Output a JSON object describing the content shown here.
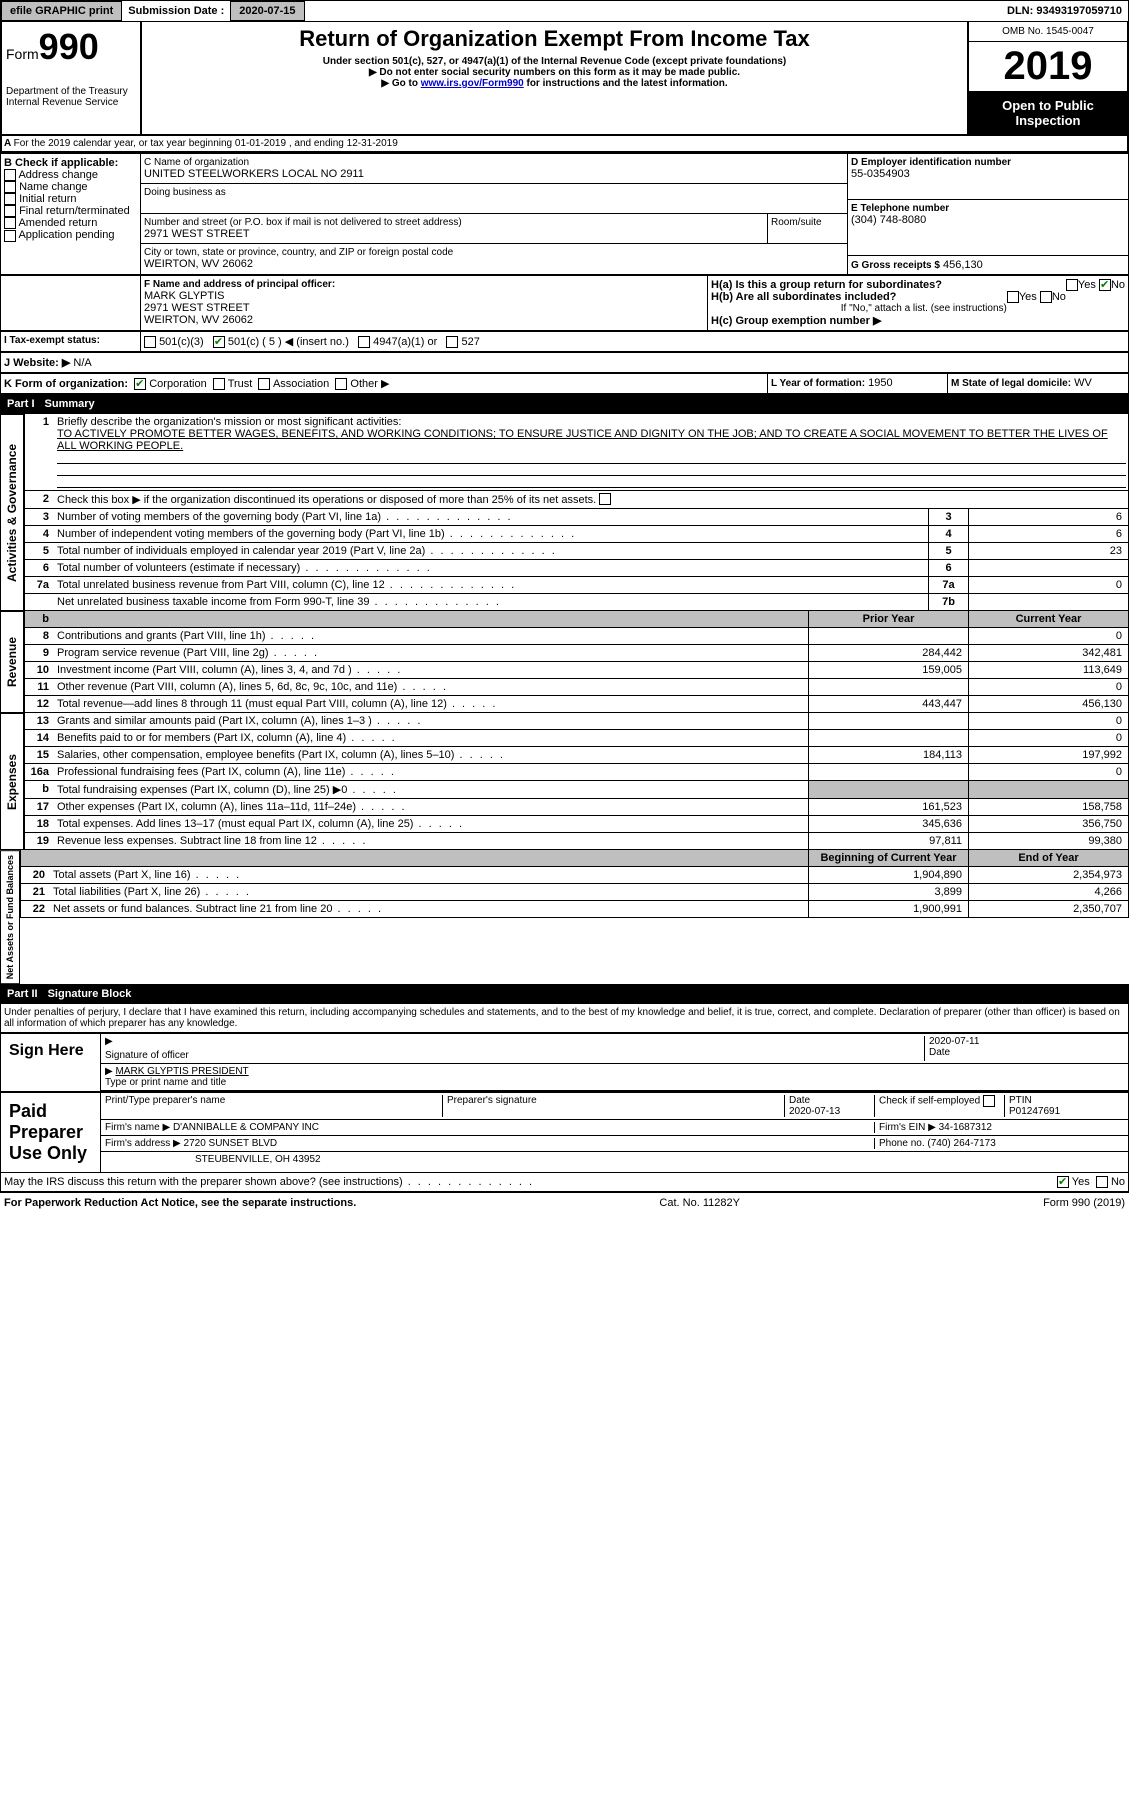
{
  "topbar": {
    "efile_btn": "efile GRAPHIC print",
    "sub_label": "Submission Date :",
    "sub_date": "2020-07-15",
    "dln_label": "DLN:",
    "dln": "93493197059710"
  },
  "header": {
    "form_word": "Form",
    "form_num": "990",
    "dept": "Department of the Treasury\nInternal Revenue Service",
    "title": "Return of Organization Exempt From Income Tax",
    "sub1": "Under section 501(c), 527, or 4947(a)(1) of the Internal Revenue Code (except private foundations)",
    "sub2": "▶ Do not enter social security numbers on this form as it may be made public.",
    "sub3a": "▶ Go to ",
    "sub3_link": "www.irs.gov/Form990",
    "sub3b": " for instructions and the latest information.",
    "omb": "OMB No. 1545-0047",
    "year": "2019",
    "open": "Open to Public Inspection"
  },
  "A": {
    "text": "For the 2019 calendar year, or tax year beginning 01-01-2019   , and ending 12-31-2019"
  },
  "B": {
    "label": "B Check if applicable:",
    "opts": [
      "Address change",
      "Name change",
      "Initial return",
      "Final return/terminated",
      "Amended return",
      "Application pending"
    ]
  },
  "C": {
    "name_lbl": "C Name of organization",
    "name": "UNITED STEELWORKERS LOCAL NO 2911",
    "dba_lbl": "Doing business as",
    "street_lbl": "Number and street (or P.O. box if mail is not delivered to street address)",
    "street": "2971 WEST STREET",
    "room_lbl": "Room/suite",
    "city_lbl": "City or town, state or province, country, and ZIP or foreign postal code",
    "city": "WEIRTON, WV  26062"
  },
  "D": {
    "lbl": "D Employer identification number",
    "val": "55-0354903"
  },
  "E": {
    "lbl": "E Telephone number",
    "val": "(304) 748-8080"
  },
  "G": {
    "lbl": "G Gross receipts $",
    "val": "456,130"
  },
  "F": {
    "lbl": "F  Name and address of principal officer:",
    "name": "MARK GLYPTIS",
    "street": "2971 WEST STREET",
    "city": "WEIRTON, WV  26062"
  },
  "H": {
    "a_lbl": "H(a)  Is this a group return for subordinates?",
    "b_lbl": "H(b)  Are all subordinates included?",
    "b_note": "If \"No,\" attach a list. (see instructions)",
    "c_lbl": "H(c)  Group exemption number ▶",
    "yes": "Yes",
    "no": "No"
  },
  "I": {
    "lbl": "I  Tax-exempt status:",
    "opts": [
      "501(c)(3)",
      "501(c) ( 5 ) ◀ (insert no.)",
      "4947(a)(1) or",
      "527"
    ]
  },
  "J": {
    "lbl": "J  Website: ▶",
    "val": "N/A"
  },
  "K": {
    "lbl": "K Form of organization:",
    "opts": [
      "Corporation",
      "Trust",
      "Association",
      "Other ▶"
    ]
  },
  "L": {
    "lbl": "L Year of formation:",
    "val": "1950"
  },
  "M": {
    "lbl": "M State of legal domicile:",
    "val": "WV"
  },
  "part1": {
    "label": "Part I",
    "title": "Summary"
  },
  "part2": {
    "label": "Part II",
    "title": "Signature Block"
  },
  "summary": {
    "q1": "Briefly describe the organization's mission or most significant activities:",
    "mission": "TO ACTIVELY PROMOTE BETTER WAGES, BENEFITS, AND WORKING CONDITIONS; TO ENSURE JUSTICE AND DIGNITY ON THE JOB; AND TO CREATE A SOCIAL MOVEMENT TO BETTER THE LIVES OF ALL WORKING PEOPLE.",
    "q2": "Check this box ▶      if the organization discontinued its operations or disposed of more than 25% of its net assets.",
    "rows_ag": [
      {
        "n": "3",
        "d": "Number of voting members of the governing body (Part VI, line 1a)",
        "box": "3",
        "v": "6"
      },
      {
        "n": "4",
        "d": "Number of independent voting members of the governing body (Part VI, line 1b)",
        "box": "4",
        "v": "6"
      },
      {
        "n": "5",
        "d": "Total number of individuals employed in calendar year 2019 (Part V, line 2a)",
        "box": "5",
        "v": "23"
      },
      {
        "n": "6",
        "d": "Total number of volunteers (estimate if necessary)",
        "box": "6",
        "v": ""
      },
      {
        "n": "7a",
        "d": "Total unrelated business revenue from Part VIII, column (C), line 12",
        "box": "7a",
        "v": "0"
      },
      {
        "n": "",
        "d": "Net unrelated business taxable income from Form 990-T, line 39",
        "box": "7b",
        "v": ""
      }
    ],
    "prior_hdr": "Prior Year",
    "curr_hdr": "Current Year",
    "rev": [
      {
        "n": "8",
        "d": "Contributions and grants (Part VIII, line 1h)",
        "p": "",
        "c": "0"
      },
      {
        "n": "9",
        "d": "Program service revenue (Part VIII, line 2g)",
        "p": "284,442",
        "c": "342,481"
      },
      {
        "n": "10",
        "d": "Investment income (Part VIII, column (A), lines 3, 4, and 7d )",
        "p": "159,005",
        "c": "113,649"
      },
      {
        "n": "11",
        "d": "Other revenue (Part VIII, column (A), lines 5, 6d, 8c, 9c, 10c, and 11e)",
        "p": "",
        "c": "0"
      },
      {
        "n": "12",
        "d": "Total revenue—add lines 8 through 11 (must equal Part VIII, column (A), line 12)",
        "p": "443,447",
        "c": "456,130"
      }
    ],
    "exp": [
      {
        "n": "13",
        "d": "Grants and similar amounts paid (Part IX, column (A), lines 1–3 )",
        "p": "",
        "c": "0"
      },
      {
        "n": "14",
        "d": "Benefits paid to or for members (Part IX, column (A), line 4)",
        "p": "",
        "c": "0"
      },
      {
        "n": "15",
        "d": "Salaries, other compensation, employee benefits (Part IX, column (A), lines 5–10)",
        "p": "184,113",
        "c": "197,992"
      },
      {
        "n": "16a",
        "d": "Professional fundraising fees (Part IX, column (A), line 11e)",
        "p": "",
        "c": "0"
      },
      {
        "n": "b",
        "d": "Total fundraising expenses (Part IX, column (D), line 25) ▶0",
        "p": "",
        "c": "",
        "shade": true
      },
      {
        "n": "17",
        "d": "Other expenses (Part IX, column (A), lines 11a–11d, 11f–24e)",
        "p": "161,523",
        "c": "158,758"
      },
      {
        "n": "18",
        "d": "Total expenses. Add lines 13–17 (must equal Part IX, column (A), line 25)",
        "p": "345,636",
        "c": "356,750"
      },
      {
        "n": "19",
        "d": "Revenue less expenses. Subtract line 18 from line 12",
        "p": "97,811",
        "c": "99,380"
      }
    ],
    "boy_hdr": "Beginning of Current Year",
    "eoy_hdr": "End of Year",
    "net": [
      {
        "n": "20",
        "d": "Total assets (Part X, line 16)",
        "p": "1,904,890",
        "c": "2,354,973"
      },
      {
        "n": "21",
        "d": "Total liabilities (Part X, line 26)",
        "p": "3,899",
        "c": "4,266"
      },
      {
        "n": "22",
        "d": "Net assets or fund balances. Subtract line 21 from line 20",
        "p": "1,900,991",
        "c": "2,350,707"
      }
    ]
  },
  "tabs": {
    "ag": "Activities & Governance",
    "rev": "Revenue",
    "exp": "Expenses",
    "net": "Net Assets or Fund Balances"
  },
  "sig": {
    "declaration": "Under penalties of perjury, I declare that I have examined this return, including accompanying schedules and statements, and to the best of my knowledge and belief, it is true, correct, and complete. Declaration of preparer (other than officer) is based on all information of which preparer has any knowledge.",
    "sign_here": "Sign Here",
    "sig_officer_lbl": "Signature of officer",
    "date_lbl": "Date",
    "date": "2020-07-11",
    "name_title": "MARK GLYPTIS PRESIDENT",
    "name_title_lbl": "Type or print name and title",
    "paid_prep": "Paid Preparer Use Only",
    "prep_name_lbl": "Print/Type preparer's name",
    "prep_sig_lbl": "Preparer's signature",
    "prep_date": "2020-07-13",
    "check_lbl": "Check      if self-employed",
    "ptin_lbl": "PTIN",
    "ptin": "P01247691",
    "firm_name_lbl": "Firm's name    ▶",
    "firm_name": "D'ANNIBALLE & COMPANY INC",
    "firm_ein_lbl": "Firm's EIN ▶",
    "firm_ein": "34-1687312",
    "firm_addr_lbl": "Firm's address ▶",
    "firm_addr1": "2720 SUNSET BLVD",
    "firm_addr2": "STEUBENVILLE, OH  43952",
    "phone_lbl": "Phone no.",
    "phone": "(740) 264-7173",
    "may_discuss": "May the IRS discuss this return with the preparer shown above? (see instructions)"
  },
  "footer": {
    "left": "For Paperwork Reduction Act Notice, see the separate instructions.",
    "mid": "Cat. No. 11282Y",
    "right": "Form 990 (2019)"
  }
}
